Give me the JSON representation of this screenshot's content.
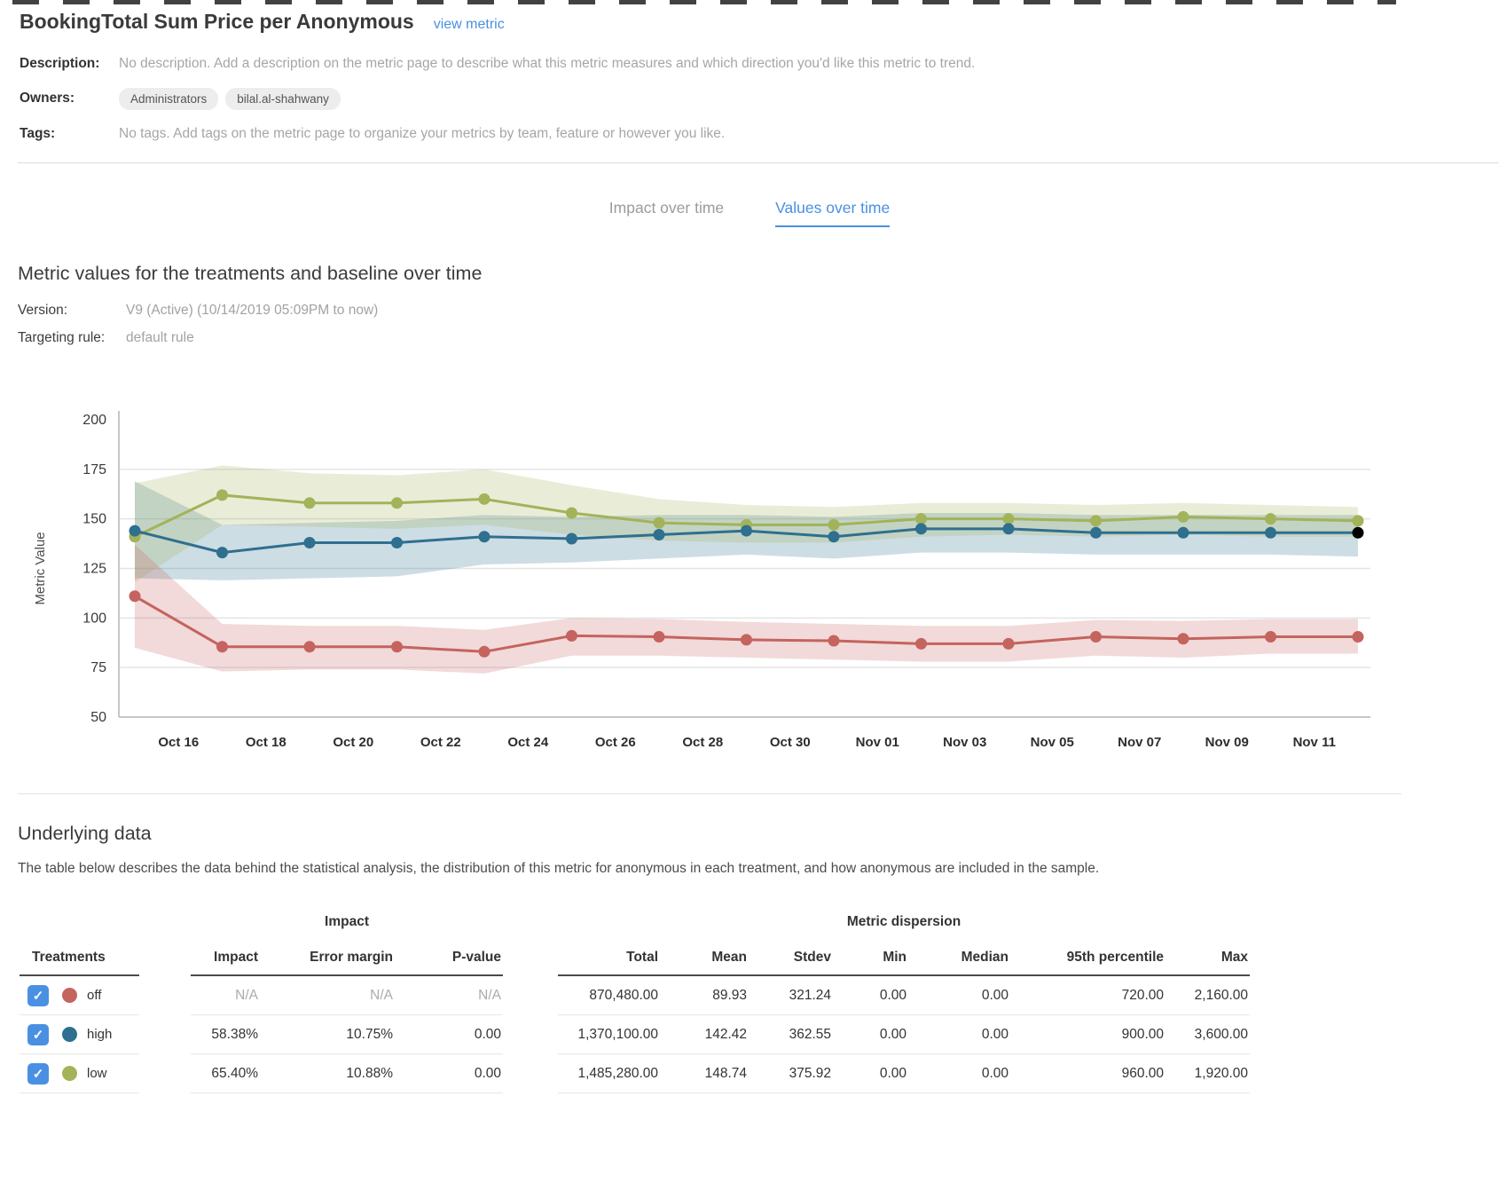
{
  "page": {
    "title": "BookingTotal Sum Price per Anonymous",
    "view_metric_link": "view metric"
  },
  "meta": {
    "description_label": "Description:",
    "description": "No description. Add a description on the metric page to describe what this metric measures and which direction you'd like this metric to trend.",
    "owners_label": "Owners:",
    "owners": [
      "Administrators",
      "bilal.al-shahwany"
    ],
    "tags_label": "Tags:",
    "tags": "No tags. Add tags on the metric page to organize your metrics by team, feature or however you like."
  },
  "tabs": [
    {
      "label": "Impact over time",
      "active": false
    },
    {
      "label": "Values over time",
      "active": true
    }
  ],
  "section": {
    "heading": "Metric values for the treatments and baseline over time",
    "version_label": "Version:",
    "version": "V9 (Active) (10/14/2019 05:09PM to now)",
    "targeting_label": "Targeting rule:",
    "targeting_rule": "default rule"
  },
  "colors": {
    "accent": "#4a90e2",
    "off": "#c5635f",
    "high": "#2f6f8f",
    "low": "#a2b35a",
    "last_point": "#000000"
  },
  "chart_data": {
    "type": "line",
    "title": "",
    "xlabel": "",
    "ylabel": "Metric Value",
    "ylim": [
      50,
      200
    ],
    "yticks": [
      50,
      75,
      100,
      125,
      150,
      175,
      200
    ],
    "grid": true,
    "legend_position": "none",
    "x_dates": [
      "Oct 15",
      "Oct 17",
      "Oct 19",
      "Oct 21",
      "Oct 23",
      "Oct 25",
      "Oct 27",
      "Oct 29",
      "Oct 31",
      "Nov 02",
      "Nov 04",
      "Nov 06",
      "Nov 08",
      "Nov 10",
      "Nov 12"
    ],
    "x_tick_labels": [
      "Oct 16",
      "Oct 18",
      "Oct 20",
      "Oct 22",
      "Oct 24",
      "Oct 26",
      "Oct 28",
      "Oct 30",
      "Nov 01",
      "Nov 03",
      "Nov 05",
      "Nov 07",
      "Nov 09",
      "Nov 11"
    ],
    "series": [
      {
        "name": "off",
        "color": "#c5635f",
        "values": [
          111,
          85.5,
          85.5,
          85.5,
          83,
          91,
          90.5,
          89,
          88.5,
          87,
          87,
          90.5,
          89.5,
          90.5,
          90.5
        ],
        "upper": [
          137,
          97,
          96,
          96,
          94,
          100,
          99.5,
          98,
          97,
          96,
          96,
          99,
          98.5,
          99.5,
          99.5
        ],
        "lower": [
          85,
          73,
          74,
          74,
          72,
          81,
          81,
          80,
          79,
          78,
          78,
          81,
          80,
          82,
          82
        ]
      },
      {
        "name": "high",
        "color": "#2f6f8f",
        "last_point_black": true,
        "values": [
          144,
          133,
          138,
          138,
          141,
          140,
          142,
          144,
          141,
          145,
          145,
          143,
          143,
          143,
          143
        ],
        "upper": [
          169,
          147,
          148,
          149,
          152,
          151,
          152,
          152,
          151,
          153,
          153,
          152,
          152,
          152,
          152
        ],
        "lower": [
          120,
          119,
          120,
          121,
          127,
          128,
          130,
          132,
          130,
          133,
          133,
          132,
          132,
          132,
          131
        ]
      },
      {
        "name": "low",
        "color": "#a2b35a",
        "values": [
          141,
          162,
          158,
          158,
          160,
          153,
          148,
          147,
          147,
          150,
          150,
          149,
          151,
          150,
          149
        ],
        "upper": [
          168,
          177,
          173,
          172,
          175,
          167,
          160,
          157,
          156,
          158,
          158,
          157,
          158,
          157,
          156
        ],
        "lower": [
          118,
          147,
          146,
          145,
          147,
          142,
          139,
          138,
          138,
          141,
          142,
          141,
          142,
          141,
          141
        ]
      }
    ]
  },
  "underlying": {
    "heading": "Underlying data",
    "description": "The table below describes the data behind the statistical analysis, the distribution of this metric for anonymous in each treatment, and how anonymous are included in the sample."
  },
  "table": {
    "treatments_header": "Treatments",
    "impact_group_label": "Impact",
    "dispersion_group_label": "Metric dispersion",
    "impact_columns": [
      "Impact",
      "Error margin",
      "P-value"
    ],
    "dispersion_columns": [
      "Total",
      "Mean",
      "Stdev",
      "Min",
      "Median",
      "95th percentile",
      "Max"
    ],
    "rows": [
      {
        "treatment": "off",
        "color": "#c5635f",
        "checked": true,
        "na": true,
        "impact": [
          "N/A",
          "N/A",
          "N/A"
        ],
        "dispersion": [
          "870,480.00",
          "89.93",
          "321.24",
          "0.00",
          "0.00",
          "720.00",
          "2,160.00"
        ]
      },
      {
        "treatment": "high",
        "color": "#2f6f8f",
        "checked": true,
        "na": false,
        "impact": [
          "58.38%",
          "10.75%",
          "0.00"
        ],
        "dispersion": [
          "1,370,100.00",
          "142.42",
          "362.55",
          "0.00",
          "0.00",
          "900.00",
          "3,600.00"
        ]
      },
      {
        "treatment": "low",
        "color": "#a2b35a",
        "checked": true,
        "na": false,
        "impact": [
          "65.40%",
          "10.88%",
          "0.00"
        ],
        "dispersion": [
          "1,485,280.00",
          "148.74",
          "375.92",
          "0.00",
          "0.00",
          "960.00",
          "1,920.00"
        ]
      }
    ]
  }
}
